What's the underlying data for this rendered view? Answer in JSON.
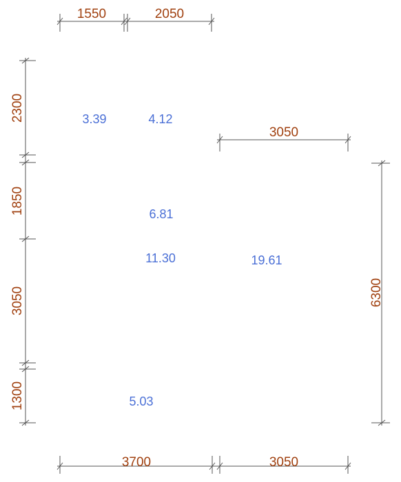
{
  "colors": {
    "dimension_text": "#a0400f",
    "area_text": "#4a6fd6",
    "line": "#555555"
  },
  "dimensions": {
    "top": [
      "1550",
      "2050"
    ],
    "upper_right": "3050",
    "left": [
      "2300",
      "1850",
      "3050",
      "1300"
    ],
    "right": "6300",
    "bottom": [
      "3700",
      "3050"
    ]
  },
  "areas": [
    "3.39",
    "4.12",
    "6.81",
    "11.30",
    "19.61",
    "5.03"
  ]
}
